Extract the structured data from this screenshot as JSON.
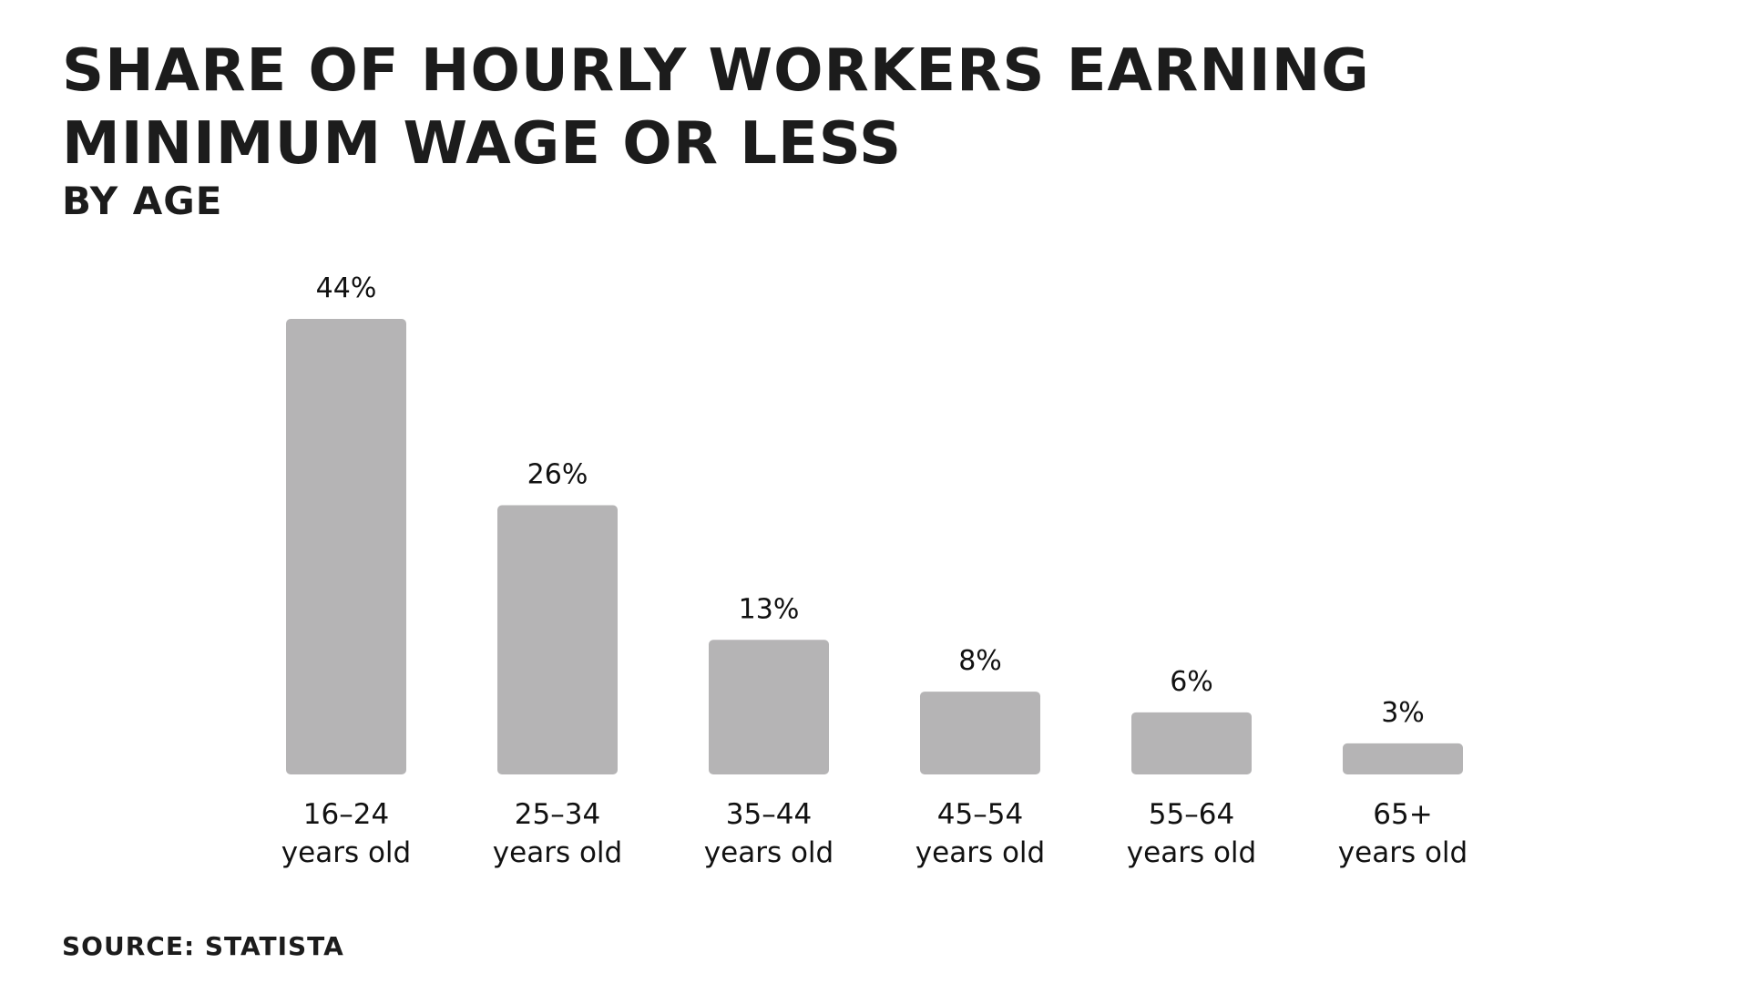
{
  "title_lines": [
    "SHARE OF HOURLY WORKERS EARNING",
    "MINIMUM WAGE OR LESS"
  ],
  "subtitle": "BY AGE",
  "source": "SOURCE: STATISTA",
  "colors": {
    "bar": "#b5b4b5",
    "text": "#1c1c1c"
  },
  "chart_data": {
    "type": "bar",
    "title": "SHARE OF HOURLY WORKERS EARNING MINIMUM WAGE OR LESS",
    "subtitle": "BY AGE",
    "categories": [
      [
        "16–24",
        "years old"
      ],
      [
        "25–34",
        "years old"
      ],
      [
        "35–44",
        "years old"
      ],
      [
        "45–54",
        "years old"
      ],
      [
        "55–64",
        "years old"
      ],
      [
        "65+",
        "years old"
      ]
    ],
    "values": [
      44,
      26,
      13,
      8,
      6,
      3
    ],
    "value_labels": [
      "44%",
      "26%",
      "13%",
      "8%",
      "6%",
      "3%"
    ],
    "unit": "%",
    "ylim": [
      0,
      44
    ],
    "grid": false,
    "legend": "none"
  }
}
